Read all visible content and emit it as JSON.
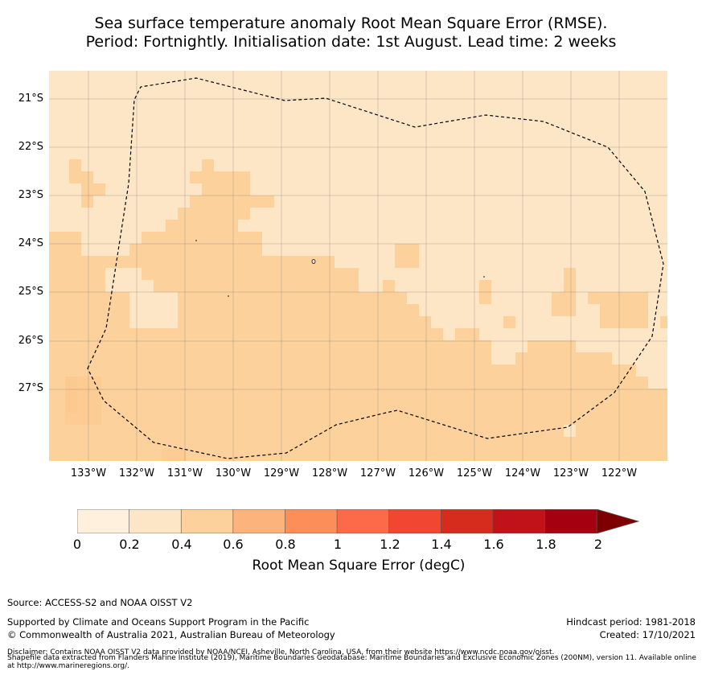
{
  "title": {
    "line1": "Sea surface temperature anomaly Root Mean Square Error (RMSE).",
    "line2": "Period: Fortnightly. Initialisation date: 1st August. Lead time: 2 weeks"
  },
  "map": {
    "latitude_labels": [
      "21°S",
      "22°S",
      "23°S",
      "24°S",
      "25°S",
      "26°S",
      "27°S"
    ],
    "longitude_labels": [
      "133°W",
      "132°W",
      "131°W",
      "130°W",
      "129°W",
      "128°W",
      "127°W",
      "126°W",
      "125°W",
      "124°W",
      "123°W",
      "122°W"
    ],
    "extent": {
      "lon_min": -133.8,
      "lon_max": -121.0,
      "lat_min": -28.5,
      "lat_max": -20.42
    },
    "base_class": "0.2-0.4",
    "background_color": "#fde6c6",
    "high_color": "#fcd19c",
    "boundary_style": "dashed black EEZ outline"
  },
  "colorbar": {
    "ticks": [
      "0",
      "0.2",
      "0.4",
      "0.6",
      "0.8",
      "1",
      "1.2",
      "1.4",
      "1.6",
      "1.8",
      "2"
    ],
    "colors": [
      "#fff0dd",
      "#fde6c6",
      "#fcd19c",
      "#fdb47c",
      "#fc8e59",
      "#fc6a4a",
      "#f04632",
      "#d62c1e",
      "#c01218",
      "#a50010"
    ],
    "extend_color": "#7f0000",
    "label": "Root Mean Square Error (degC)"
  },
  "footer": {
    "source": "Source: ACCESS-S2 and NOAA OISST V2",
    "supported": "Supported by Climate and Oceans Support Program in the Pacific",
    "copyright": "© Commonwealth of Australia 2021, Australian Bureau of Meteorology",
    "hindcast": "Hindcast period: 1981-2018",
    "created": "Created: 17/10/2021",
    "disclaimer1": "Disclaimer: Contains NOAA OISST V2 data provided by NOAA/NCEI, Asheville, North Carolina, USA, from their website https://www.ncdc.noaa.gov/oisst.",
    "disclaimer2": "Shapefile data extracted from Flanders Marine Institute (2019), Maritime Boundaries Geodatabase: Maritime Boundaries and Exclusive Economic Zones (200NM), version 11. Available online at http://www.marineregions.org/."
  }
}
